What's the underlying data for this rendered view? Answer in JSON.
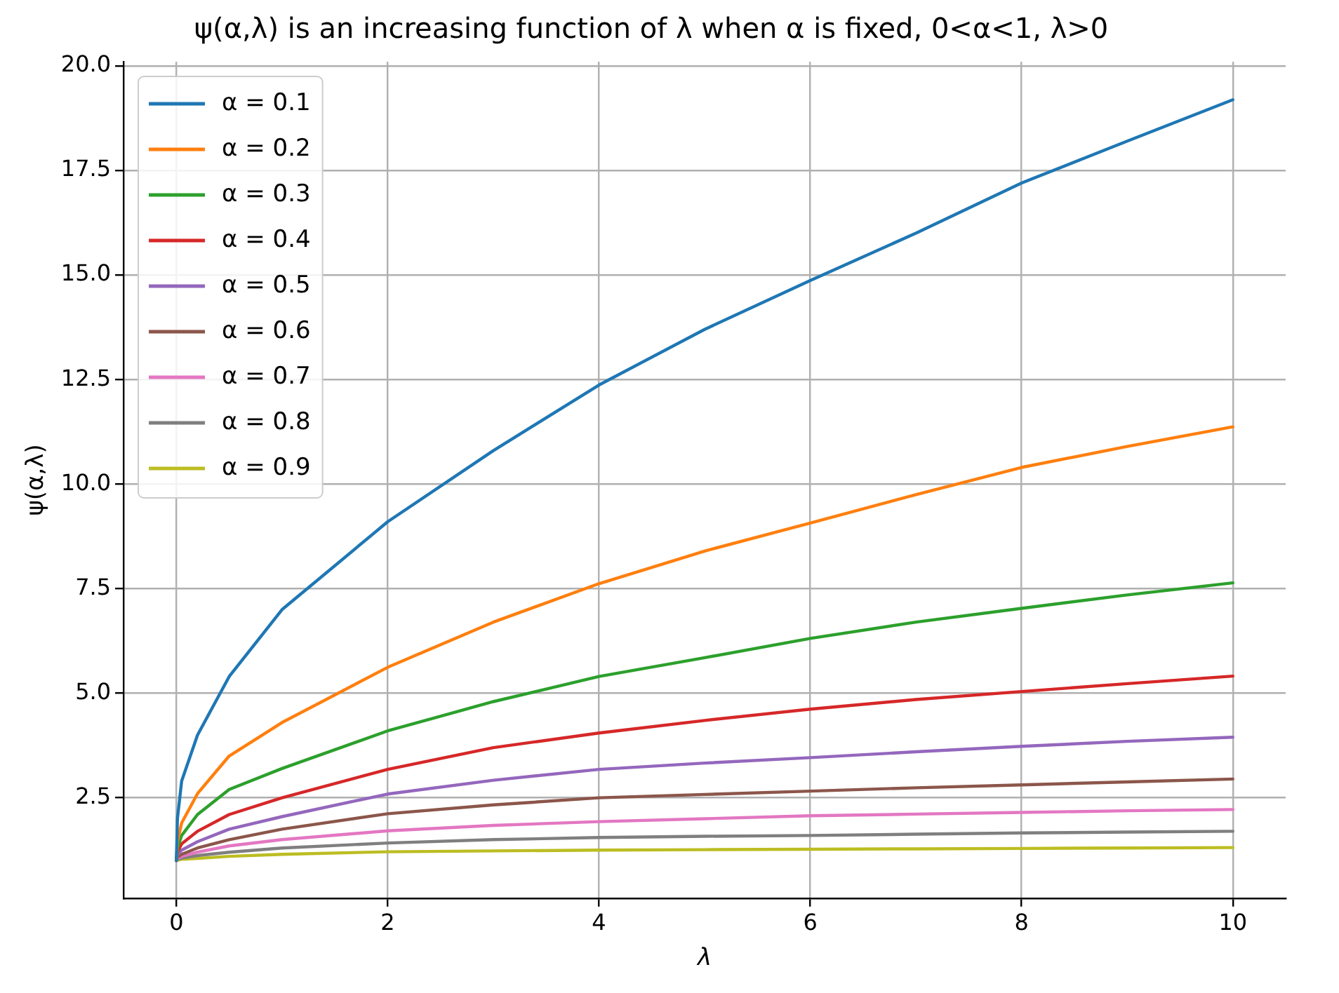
{
  "chart_data": {
    "type": "line",
    "title": "ψ(α,λ) is an increasing function of λ when α is fixed, 0<α<1, λ>0",
    "xlabel": "λ",
    "ylabel": "ψ(α,λ)",
    "x": [
      0,
      0.01,
      0.05,
      0.2,
      0.5,
      1,
      2,
      3,
      4,
      5,
      6,
      7,
      8,
      9,
      10
    ],
    "series": [
      {
        "name": "α = 0.1",
        "color": "#1f77b4",
        "values": [
          1,
          2.0,
          2.9,
          4.0,
          5.4,
          7.0,
          9.1,
          10.8,
          12.37,
          13.7,
          14.87,
          16.0,
          17.2,
          18.2,
          19.19
        ]
      },
      {
        "name": "α = 0.2",
        "color": "#ff7f0e",
        "values": [
          1,
          1.45,
          1.9,
          2.6,
          3.5,
          4.3,
          5.62,
          6.7,
          7.62,
          8.4,
          9.07,
          9.75,
          10.4,
          10.9,
          11.37
        ]
      },
      {
        "name": "α = 0.3",
        "color": "#2ca02c",
        "values": [
          1,
          1.3,
          1.6,
          2.1,
          2.7,
          3.2,
          4.1,
          4.8,
          5.4,
          5.85,
          6.31,
          6.7,
          7.03,
          7.35,
          7.64
        ]
      },
      {
        "name": "α = 0.4",
        "color": "#d62728",
        "values": [
          1,
          1.2,
          1.4,
          1.7,
          2.1,
          2.5,
          3.18,
          3.7,
          4.05,
          4.35,
          4.62,
          4.85,
          5.04,
          5.23,
          5.41
        ]
      },
      {
        "name": "α = 0.5",
        "color": "#9467bd",
        "values": [
          1,
          1.12,
          1.25,
          1.45,
          1.75,
          2.05,
          2.59,
          2.92,
          3.18,
          3.33,
          3.46,
          3.6,
          3.73,
          3.85,
          3.95
        ]
      },
      {
        "name": "α = 0.6",
        "color": "#8c564b",
        "values": [
          1,
          1.08,
          1.15,
          1.3,
          1.5,
          1.75,
          2.12,
          2.33,
          2.5,
          2.58,
          2.66,
          2.74,
          2.81,
          2.88,
          2.95
        ]
      },
      {
        "name": "α = 0.7",
        "color": "#e377c2",
        "values": [
          1,
          1.05,
          1.1,
          1.2,
          1.35,
          1.5,
          1.71,
          1.84,
          1.93,
          2.0,
          2.07,
          2.11,
          2.15,
          2.19,
          2.22
        ]
      },
      {
        "name": "α = 0.8",
        "color": "#7f7f7f",
        "values": [
          1,
          1.03,
          1.06,
          1.12,
          1.2,
          1.3,
          1.42,
          1.5,
          1.55,
          1.58,
          1.6,
          1.63,
          1.66,
          1.68,
          1.7
        ]
      },
      {
        "name": "α = 0.9",
        "color": "#bcbd22",
        "values": [
          1,
          1.01,
          1.03,
          1.05,
          1.1,
          1.15,
          1.21,
          1.23,
          1.25,
          1.26,
          1.27,
          1.28,
          1.29,
          1.3,
          1.31
        ]
      }
    ],
    "xlim": [
      -0.5,
      10.5
    ],
    "xticks": [
      0,
      2,
      4,
      6,
      8,
      10
    ],
    "ylim": [
      0.1,
      20.1
    ],
    "yticks": [
      2.5,
      {
        "value": 5,
        "label": "5.0"
      },
      7.5,
      {
        "value": 10,
        "label": "10.0"
      },
      12.5,
      {
        "value": 15,
        "label": "15.0"
      },
      17.5,
      {
        "value": 20,
        "label": "20.0"
      }
    ],
    "grid": true,
    "legend": "top left",
    "marker": "none",
    "line_style": "solid"
  }
}
